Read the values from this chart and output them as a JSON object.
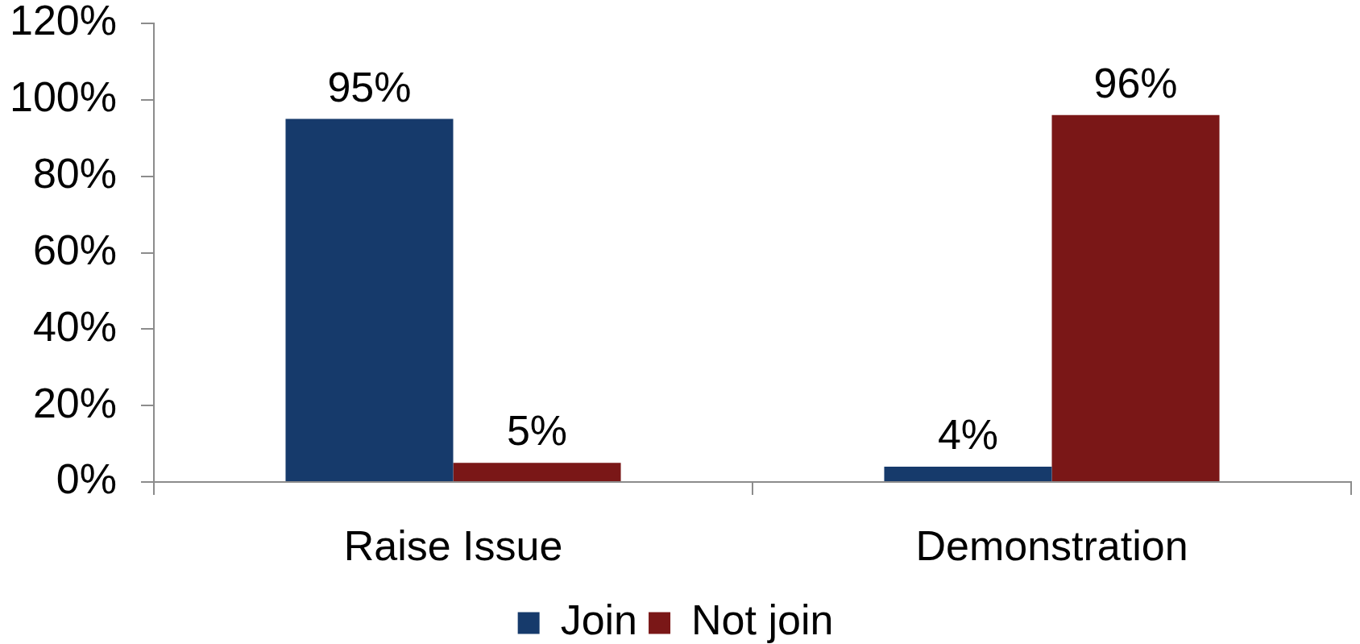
{
  "chart_data": {
    "type": "bar",
    "categories": [
      "Raise Issue",
      "Demonstration"
    ],
    "series": [
      {
        "name": "Join",
        "color": "#163a6b",
        "values": [
          95,
          4
        ],
        "value_labels": [
          "95%",
          "4%"
        ]
      },
      {
        "name": "Not join",
        "color": "#7a1717",
        "values": [
          5,
          96
        ],
        "value_labels": [
          "5%",
          "96%"
        ]
      }
    ],
    "ylim": [
      0,
      120
    ],
    "yticks": [
      {
        "value": 0,
        "label": "0%"
      },
      {
        "value": 20,
        "label": "20%"
      },
      {
        "value": 40,
        "label": "40%"
      },
      {
        "value": 60,
        "label": "60%"
      },
      {
        "value": 80,
        "label": "80%"
      },
      {
        "value": 100,
        "label": "100%"
      },
      {
        "value": 120,
        "label": "120%"
      }
    ],
    "grid": false,
    "legend": "bottom"
  }
}
